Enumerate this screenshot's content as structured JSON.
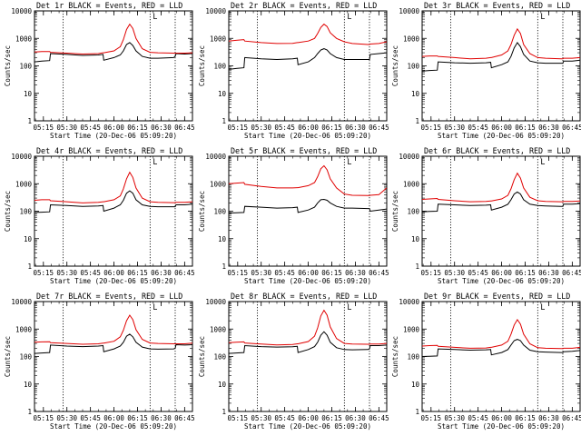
{
  "colors": {
    "events": "#000000",
    "lld": "#e00000",
    "axis": "#000000",
    "background": "#ffffff"
  },
  "x_ticks": [
    "05:15",
    "05:30",
    "05:45",
    "06:00",
    "06:15",
    "06:30",
    "06:45"
  ],
  "y_ticks": [
    "1",
    "10",
    "100",
    "1000",
    "10000"
  ],
  "chart_data": [
    {
      "type": "line",
      "title": "Det 1r BLACK = Events, RED = LLD",
      "xlabel": "Start Time (20-Dec-06 05:09:20)",
      "ylabel": "Counts/sec",
      "yscale": "log",
      "ylim": [
        1,
        10000
      ],
      "xlim": [
        "05:09:20",
        "06:50:00"
      ],
      "grid": false,
      "event_lines": [
        "05:27:30",
        "06:23:00",
        "06:39:00"
      ],
      "marker": "L",
      "x": [
        "05:09:20",
        "05:14",
        "05:19",
        "05:19:30",
        "05:30",
        "05:40",
        "05:50",
        "05:53",
        "05:53:30",
        "06:00",
        "06:04",
        "06:06",
        "06:08",
        "06:10",
        "06:12",
        "06:14",
        "06:18",
        "06:23",
        "06:28",
        "06:38",
        "06:39",
        "06:39:30",
        "06:45",
        "06:50"
      ],
      "series": [
        {
          "name": "BLACK = Events",
          "values": [
            140,
            150,
            155,
            280,
            260,
            240,
            250,
            260,
            160,
            200,
            250,
            350,
            600,
            700,
            550,
            350,
            220,
            190,
            190,
            200,
            220,
            280,
            270,
            280
          ]
        },
        {
          "name": "RED = LLD",
          "values": [
            320,
            330,
            330,
            310,
            290,
            270,
            280,
            300,
            300,
            350,
            500,
            900,
            2100,
            3300,
            2300,
            1000,
            420,
            310,
            300,
            290,
            290,
            290,
            290,
            300
          ]
        }
      ]
    },
    {
      "type": "line",
      "title": "Det 2r BLACK = Events, RED = LLD",
      "xlabel": "Start Time (20-Dec-06 05:09:20)",
      "ylabel": "Counts/sec",
      "yscale": "log",
      "ylim": [
        1,
        10000
      ],
      "xlim": [
        "05:09:20",
        "06:50:00"
      ],
      "grid": false,
      "event_lines": [
        "05:27:30",
        "06:23:00",
        "06:39:00"
      ],
      "marker": "L",
      "x": [
        "05:09:20",
        "05:14",
        "05:19",
        "05:19:30",
        "05:30",
        "05:40",
        "05:50",
        "05:53",
        "05:53:30",
        "06:00",
        "06:04",
        "06:06",
        "06:08",
        "06:10",
        "06:12",
        "06:14",
        "06:18",
        "06:23",
        "06:28",
        "06:38",
        "06:39",
        "06:39:30",
        "06:45",
        "06:50"
      ],
      "series": [
        {
          "name": "BLACK = Events",
          "values": [
            75,
            80,
            85,
            200,
            180,
            170,
            180,
            190,
            110,
            140,
            200,
            280,
            380,
            420,
            380,
            280,
            200,
            170,
            170,
            170,
            170,
            260,
            280,
            300
          ]
        },
        {
          "name": "RED = LLD",
          "values": [
            800,
            850,
            900,
            800,
            700,
            650,
            660,
            700,
            700,
            800,
            1000,
            1500,
            2500,
            3300,
            2700,
            1600,
            1000,
            750,
            650,
            600,
            600,
            620,
            650,
            750
          ]
        }
      ]
    },
    {
      "type": "line",
      "title": "Det 3r BLACK = Events, RED = LLD",
      "xlabel": "Start Time (20-Dec-06 05:09:20)",
      "ylabel": "Counts/sec",
      "yscale": "log",
      "ylim": [
        1,
        10000
      ],
      "xlim": [
        "05:09:20",
        "06:50:00"
      ],
      "grid": false,
      "event_lines": [
        "05:27:30",
        "06:23:00",
        "06:39:00"
      ],
      "marker": "L",
      "x": [
        "05:09:20",
        "05:14",
        "05:19",
        "05:19:30",
        "05:30",
        "05:40",
        "05:50",
        "05:53",
        "05:53:30",
        "06:00",
        "06:04",
        "06:06",
        "06:08",
        "06:10",
        "06:12",
        "06:14",
        "06:18",
        "06:23",
        "06:28",
        "06:38",
        "06:39",
        "06:39:30",
        "06:45",
        "06:50"
      ],
      "series": [
        {
          "name": "BLACK = Events",
          "values": [
            65,
            68,
            70,
            140,
            130,
            125,
            130,
            135,
            85,
            110,
            140,
            220,
            450,
            700,
            500,
            260,
            150,
            130,
            125,
            125,
            125,
            150,
            150,
            160
          ]
        },
        {
          "name": "RED = LLD",
          "values": [
            220,
            230,
            230,
            220,
            200,
            180,
            190,
            200,
            200,
            250,
            350,
            600,
            1300,
            2200,
            1500,
            600,
            280,
            200,
            190,
            180,
            180,
            190,
            190,
            200
          ]
        }
      ]
    },
    {
      "type": "line",
      "title": "Det 4r BLACK = Events, RED = LLD",
      "xlabel": "Start Time (20-Dec-06 05:09:20)",
      "ylabel": "Counts/sec",
      "yscale": "log",
      "ylim": [
        1,
        10000
      ],
      "xlim": [
        "05:09:20",
        "06:50:00"
      ],
      "grid": false,
      "event_lines": [
        "05:27:30",
        "06:23:00",
        "06:39:00"
      ],
      "marker": "L",
      "x": [
        "05:09:20",
        "05:14",
        "05:19",
        "05:19:30",
        "05:30",
        "05:40",
        "05:50",
        "05:53",
        "05:53:30",
        "06:00",
        "06:04",
        "06:06",
        "06:08",
        "06:10",
        "06:12",
        "06:14",
        "06:18",
        "06:23",
        "06:28",
        "06:38",
        "06:39",
        "06:39:30",
        "06:45",
        "06:50"
      ],
      "series": [
        {
          "name": "BLACK = Events",
          "values": [
            90,
            92,
            95,
            170,
            160,
            150,
            155,
            160,
            100,
            130,
            170,
            250,
            450,
            550,
            450,
            260,
            170,
            150,
            145,
            145,
            145,
            170,
            170,
            180
          ]
        },
        {
          "name": "RED = LLD",
          "values": [
            250,
            260,
            260,
            240,
            220,
            200,
            210,
            220,
            220,
            260,
            360,
            650,
            1500,
            2600,
            1700,
            700,
            300,
            220,
            210,
            205,
            205,
            210,
            210,
            220
          ]
        }
      ]
    },
    {
      "type": "line",
      "title": "Det 5r BLACK = Events, RED = LLD",
      "xlabel": "Start Time (20-Dec-06 05:09:20)",
      "ylabel": "Counts/sec",
      "yscale": "log",
      "ylim": [
        1,
        10000
      ],
      "xlim": [
        "05:09:20",
        "06:50:00"
      ],
      "grid": false,
      "event_lines": [
        "05:27:30",
        "06:23:00",
        "06:39:00"
      ],
      "marker": "L",
      "x": [
        "05:09:20",
        "05:14",
        "05:19",
        "05:19:30",
        "05:30",
        "05:40",
        "05:50",
        "05:53",
        "05:53:30",
        "06:00",
        "06:04",
        "06:06",
        "06:08",
        "06:10",
        "06:12",
        "06:14",
        "06:18",
        "06:23",
        "06:28",
        "06:38",
        "06:39",
        "06:39:30",
        "06:45",
        "06:50"
      ],
      "series": [
        {
          "name": "BLACK = Events",
          "values": [
            85,
            88,
            90,
            150,
            140,
            130,
            135,
            140,
            90,
            110,
            140,
            200,
            260,
            270,
            250,
            200,
            150,
            130,
            130,
            125,
            125,
            100,
            110,
            120
          ]
        },
        {
          "name": "RED = LLD",
          "values": [
            1000,
            1050,
            1100,
            950,
            800,
            700,
            700,
            720,
            720,
            850,
            1100,
            1800,
            3500,
            4500,
            3200,
            1500,
            700,
            420,
            380,
            370,
            370,
            380,
            400,
            700
          ]
        }
      ]
    },
    {
      "type": "line",
      "title": "Det 6r BLACK = Events, RED = LLD",
      "xlabel": "Start Time (20-Dec-06 05:09:20)",
      "ylabel": "Counts/sec",
      "yscale": "log",
      "ylim": [
        1,
        10000
      ],
      "xlim": [
        "05:09:20",
        "06:50:00"
      ],
      "grid": false,
      "event_lines": [
        "05:27:30",
        "06:23:00",
        "06:39:00"
      ],
      "marker": "L",
      "x": [
        "05:09:20",
        "05:14",
        "05:19",
        "05:19:30",
        "05:30",
        "05:40",
        "05:50",
        "05:53",
        "05:53:30",
        "06:00",
        "06:04",
        "06:06",
        "06:08",
        "06:10",
        "06:12",
        "06:14",
        "06:18",
        "06:23",
        "06:28",
        "06:38",
        "06:39",
        "06:39:30",
        "06:45",
        "06:50"
      ],
      "series": [
        {
          "name": "BLACK = Events",
          "values": [
            95,
            98,
            100,
            180,
            170,
            160,
            165,
            170,
            110,
            140,
            180,
            260,
            420,
            500,
            420,
            260,
            180,
            160,
            155,
            150,
            150,
            180,
            180,
            190
          ]
        },
        {
          "name": "RED = LLD",
          "values": [
            270,
            280,
            290,
            270,
            240,
            220,
            225,
            235,
            235,
            280,
            380,
            650,
            1400,
            2400,
            1600,
            700,
            320,
            240,
            225,
            220,
            220,
            225,
            225,
            235
          ]
        }
      ]
    },
    {
      "type": "line",
      "title": "Det 7r BLACK = Events, RED = LLD",
      "xlabel": "Start Time (20-Dec-06 05:09:20)",
      "ylabel": "Counts/sec",
      "yscale": "log",
      "ylim": [
        1,
        10000
      ],
      "xlim": [
        "05:09:20",
        "06:50:00"
      ],
      "grid": false,
      "event_lines": [
        "05:27:30",
        "06:23:00",
        "06:39:00"
      ],
      "marker": "L",
      "x": [
        "05:09:20",
        "05:14",
        "05:19",
        "05:19:30",
        "05:30",
        "05:40",
        "05:50",
        "05:53",
        "05:53:30",
        "06:00",
        "06:04",
        "06:06",
        "06:08",
        "06:10",
        "06:12",
        "06:14",
        "06:18",
        "06:23",
        "06:28",
        "06:38",
        "06:39",
        "06:39:30",
        "06:45",
        "06:50"
      ],
      "series": [
        {
          "name": "BLACK = Events",
          "values": [
            130,
            135,
            140,
            260,
            240,
            230,
            240,
            250,
            150,
            190,
            240,
            330,
            550,
            650,
            520,
            330,
            220,
            190,
            185,
            190,
            200,
            270,
            260,
            270
          ]
        },
        {
          "name": "RED = LLD",
          "values": [
            330,
            340,
            345,
            320,
            300,
            280,
            290,
            305,
            305,
            360,
            520,
            900,
            2000,
            3200,
            2200,
            950,
            420,
            310,
            300,
            290,
            290,
            290,
            290,
            305
          ]
        }
      ]
    },
    {
      "type": "line",
      "title": "Det 8r BLACK = Events, RED = LLD",
      "xlabel": "Start Time (20-Dec-06 05:09:20)",
      "ylabel": "Counts/sec",
      "yscale": "log",
      "ylim": [
        1,
        10000
      ],
      "xlim": [
        "05:09:20",
        "06:50:00"
      ],
      "grid": false,
      "event_lines": [
        "05:27:30",
        "06:23:00",
        "06:39:00"
      ],
      "marker": "L",
      "x": [
        "05:09:20",
        "05:14",
        "05:19",
        "05:19:30",
        "05:30",
        "05:40",
        "05:50",
        "05:53",
        "05:53:30",
        "06:00",
        "06:04",
        "06:06",
        "06:08",
        "06:10",
        "06:12",
        "06:14",
        "06:18",
        "06:23",
        "06:28",
        "06:38",
        "06:39",
        "06:39:30",
        "06:45",
        "06:50"
      ],
      "series": [
        {
          "name": "BLACK = Events",
          "values": [
            130,
            135,
            140,
            250,
            230,
            220,
            225,
            235,
            140,
            180,
            230,
            330,
            600,
            800,
            600,
            330,
            210,
            180,
            175,
            180,
            190,
            250,
            250,
            260
          ]
        },
        {
          "name": "RED = LLD",
          "values": [
            320,
            330,
            340,
            310,
            285,
            265,
            275,
            290,
            290,
            350,
            550,
            1100,
            3000,
            4800,
            3200,
            1200,
            450,
            300,
            285,
            280,
            280,
            285,
            285,
            300
          ]
        }
      ]
    },
    {
      "type": "line",
      "title": "Det 9r BLACK = Events, RED = LLD",
      "xlabel": "Start Time (20-Dec-06 05:09:20)",
      "ylabel": "Counts/sec",
      "yscale": "log",
      "ylim": [
        1,
        10000
      ],
      "xlim": [
        "05:09:20",
        "06:50:00"
      ],
      "grid": false,
      "event_lines": [
        "05:27:30",
        "06:23:00",
        "06:39:00"
      ],
      "marker": "L",
      "x": [
        "05:09:20",
        "05:14",
        "05:19",
        "05:19:30",
        "05:30",
        "05:40",
        "05:50",
        "05:53",
        "05:53:30",
        "06:00",
        "06:04",
        "06:06",
        "06:08",
        "06:10",
        "06:12",
        "06:14",
        "06:18",
        "06:23",
        "06:28",
        "06:38",
        "06:39",
        "06:39:30",
        "06:45",
        "06:50"
      ],
      "series": [
        {
          "name": "BLACK = Events",
          "values": [
            100,
            102,
            105,
            190,
            180,
            170,
            175,
            180,
            115,
            140,
            180,
            260,
            380,
            420,
            380,
            260,
            170,
            150,
            145,
            140,
            140,
            150,
            155,
            165
          ]
        },
        {
          "name": "RED = LLD",
          "values": [
            240,
            250,
            255,
            235,
            215,
            200,
            205,
            215,
            215,
            260,
            360,
            650,
            1400,
            2200,
            1500,
            650,
            290,
            210,
            200,
            195,
            195,
            200,
            200,
            215
          ]
        }
      ]
    }
  ]
}
